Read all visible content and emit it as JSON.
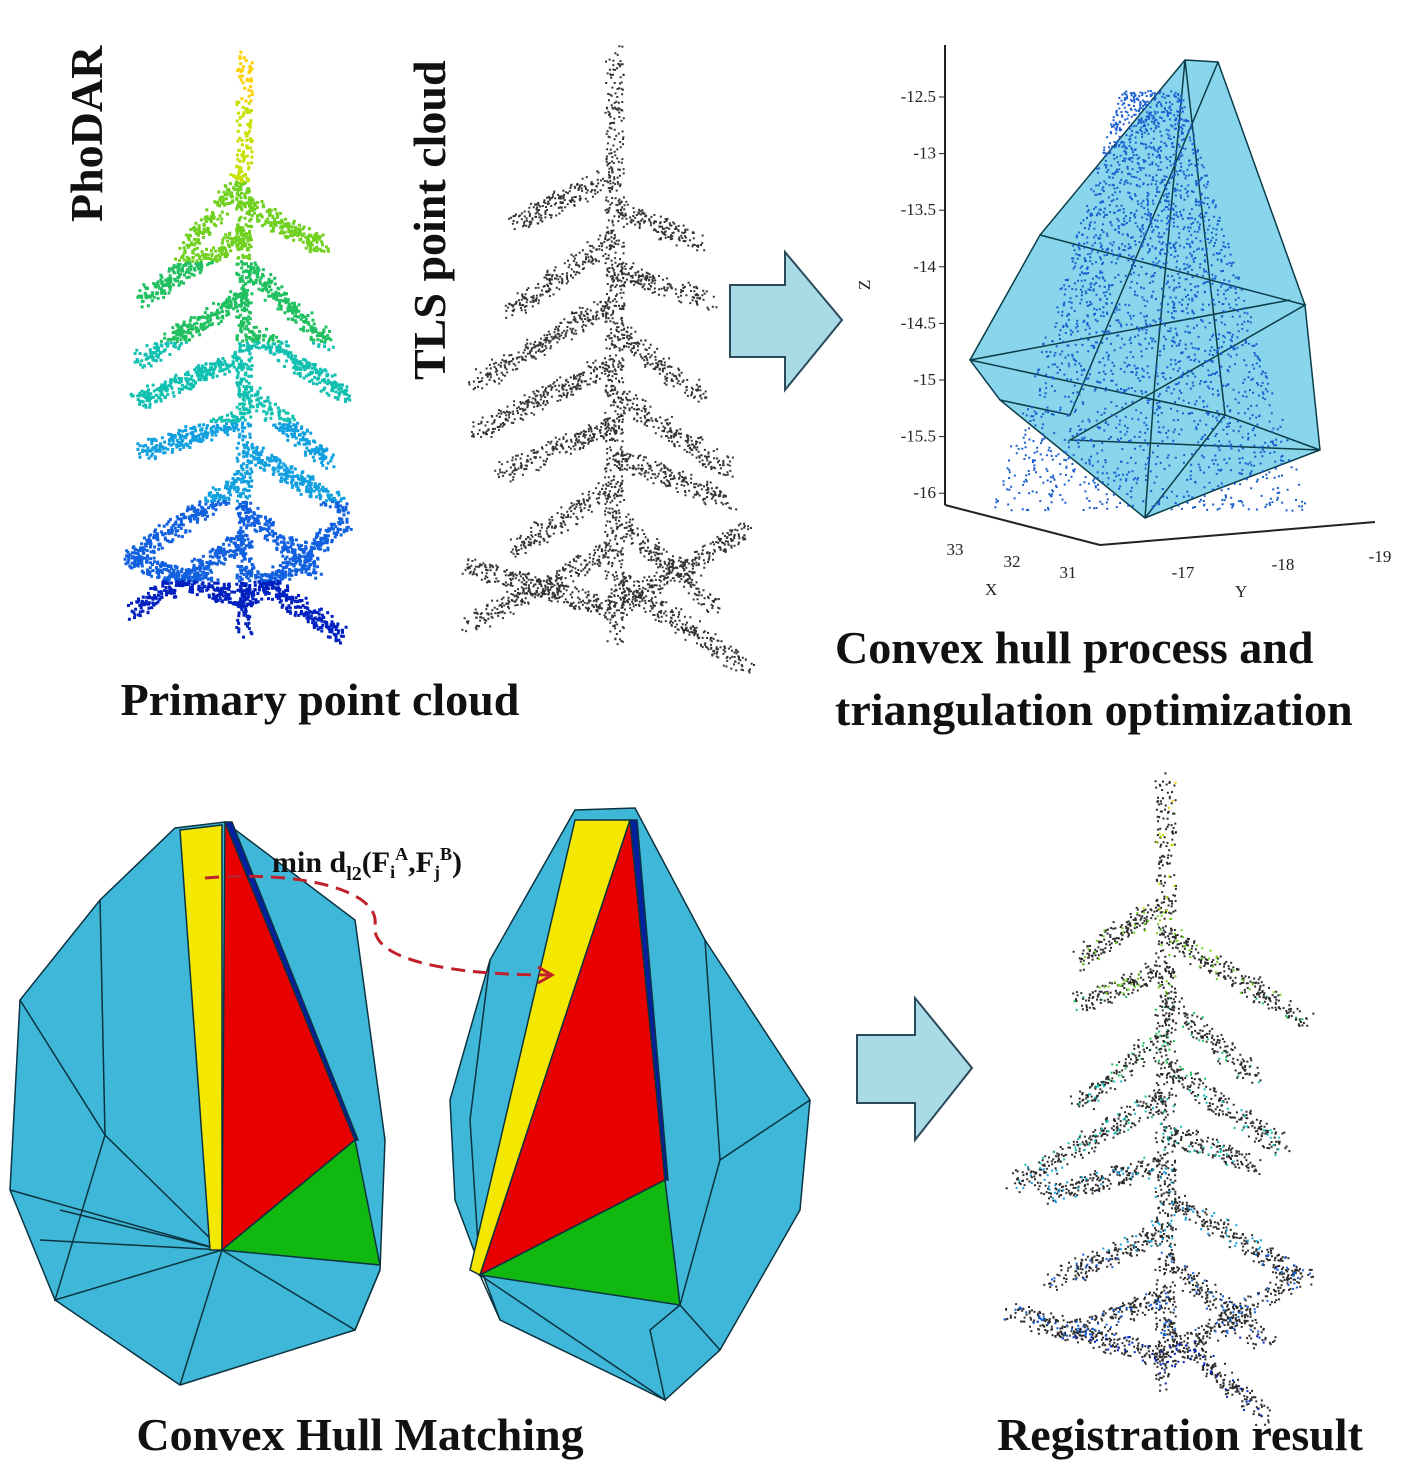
{
  "labels": {
    "phodar": "PhoDAR",
    "tls": "TLS point cloud",
    "primary": "Primary point cloud",
    "hull_process": [
      "Convex hull process and",
      "triangulation optimization"
    ],
    "matching": "Convex Hull Matching",
    "registration": "Registration result"
  },
  "formula": [
    "min d",
    "l2",
    "(F",
    "i",
    "A",
    ",F",
    "j",
    "B",
    ")"
  ],
  "plot": {
    "z_label": "Z",
    "x_label": "X",
    "y_label": "Y",
    "z_ticks": [
      -12.5,
      -13,
      -13.5,
      -14,
      -14.5,
      -15,
      -15.5,
      -16
    ],
    "x_ticks": [
      33,
      32,
      31
    ],
    "y_ticks": [
      -17,
      -18,
      -19
    ]
  }
}
